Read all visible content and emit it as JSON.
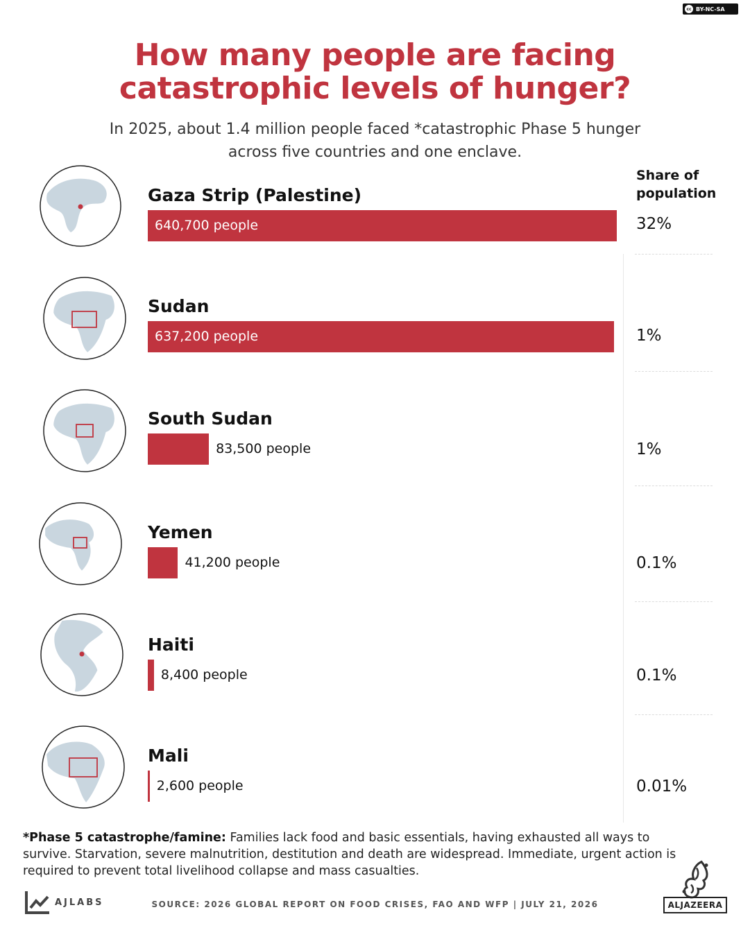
{
  "license": "BY-NC-SA",
  "title_line1": "How many people are facing",
  "title_line2": "catastrophic levels of hunger?",
  "subtitle_line1": "In 2025, about 1.4 million people faced *catastrophic Phase 5 hunger",
  "subtitle_line2": "across five countries and one enclave.",
  "share_header_line1": "Share of",
  "share_header_line2": "population",
  "colors": {
    "accent": "#c0343f",
    "globe_land": "#c9d6df"
  },
  "chart_data": {
    "type": "bar",
    "orientation": "horizontal",
    "title": "How many people are facing catastrophic levels of hunger?",
    "unit": "people",
    "categories": [
      "Gaza Strip (Palestine)",
      "Sudan",
      "South Sudan",
      "Yemen",
      "Haiti",
      "Mali"
    ],
    "values": [
      640700,
      637200,
      83500,
      41200,
      8400,
      2600
    ],
    "value_labels": [
      "640,700 people",
      "637,200 people",
      "83,500 people",
      "41,200 people",
      "8,400 people",
      "2,600 people"
    ],
    "share_of_population": [
      "32%",
      "1%",
      "1%",
      "0.1%",
      "0.1%",
      "0.01%"
    ],
    "xlim": [
      0,
      640700
    ]
  },
  "footnote": {
    "term": "*Phase 5 catastrophe/famine:",
    "text": " Families lack food and basic essentials, having exhausted all ways to survive. Starvation, severe malnutrition, destitution and death are widespread. Immediate, urgent action is required to prevent total livelihood collapse and mass casualties."
  },
  "brand": {
    "ajlabs": "AJLABS",
    "aljazeera": "ALJAZEERA"
  },
  "source": "SOURCE: 2026 GLOBAL REPORT ON FOOD CRISES, FAO AND WFP  |  JULY 21, 2026"
}
